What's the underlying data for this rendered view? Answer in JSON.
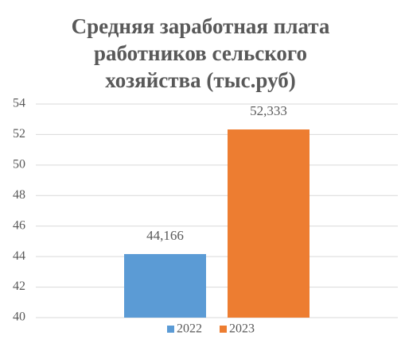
{
  "chart_data": {
    "type": "bar",
    "title": [
      "Средняя заработная плата",
      "работников сельского",
      "хозяйства (тыс.руб)"
    ],
    "series": [
      {
        "name": "2022",
        "color": "#5b9bd5",
        "values": [
          44.166
        ],
        "value_labels": [
          "44,166"
        ]
      },
      {
        "name": "2023",
        "color": "#ed7d31",
        "values": [
          52.333
        ],
        "value_labels": [
          "52,333"
        ]
      }
    ],
    "ylim": [
      40,
      54
    ],
    "yticks": [
      40,
      42,
      44,
      46,
      48,
      50,
      52,
      54
    ],
    "grid": true,
    "legend": "bottom"
  }
}
